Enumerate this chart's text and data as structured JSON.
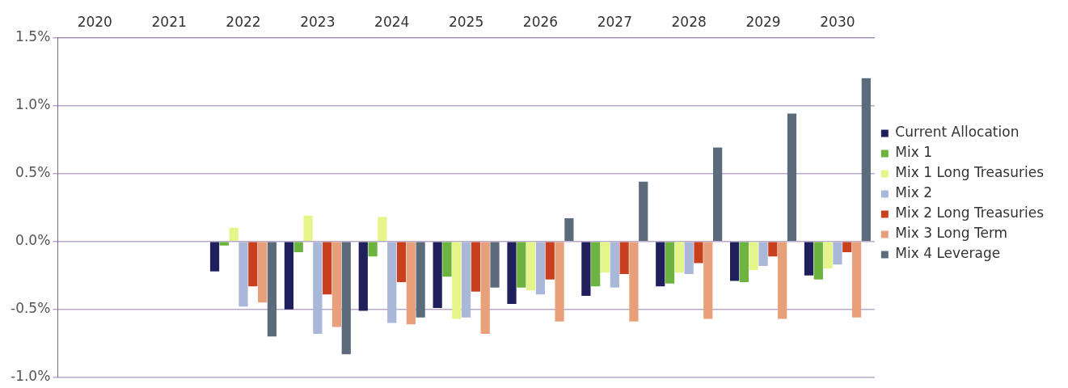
{
  "chart_data": {
    "type": "bar",
    "categories": [
      "2020",
      "2021",
      "2022",
      "2023",
      "2024",
      "2025",
      "2026",
      "2027",
      "2028",
      "2029",
      "2030"
    ],
    "series": [
      {
        "name": "Current Allocation",
        "color": "#1f1f5c",
        "values": [
          0,
          0,
          -0.22,
          -0.5,
          -0.51,
          -0.49,
          -0.46,
          -0.4,
          -0.33,
          -0.29,
          -0.25
        ]
      },
      {
        "name": "Mix 1",
        "color": "#6db33f",
        "values": [
          0,
          0,
          -0.03,
          -0.08,
          -0.11,
          -0.26,
          -0.34,
          -0.33,
          -0.31,
          -0.3,
          -0.28
        ]
      },
      {
        "name": "Mix 1 Long Treasuries",
        "color": "#e6f58a",
        "values": [
          0,
          0,
          0.1,
          0.19,
          0.18,
          -0.57,
          -0.36,
          -0.23,
          -0.23,
          -0.21,
          -0.2
        ]
      },
      {
        "name": "Mix 2",
        "color": "#a9b8d8",
        "values": [
          0,
          0,
          -0.48,
          -0.68,
          -0.6,
          -0.56,
          -0.39,
          -0.34,
          -0.24,
          -0.18,
          -0.17
        ]
      },
      {
        "name": "Mix 2 Long Treasuries",
        "color": "#c9401e",
        "values": [
          0,
          0,
          -0.33,
          -0.39,
          -0.3,
          -0.37,
          -0.28,
          -0.24,
          -0.16,
          -0.11,
          -0.08
        ]
      },
      {
        "name": "Mix 3 Long Term",
        "color": "#e8a07a",
        "values": [
          0,
          0,
          -0.45,
          -0.63,
          -0.61,
          -0.68,
          -0.59,
          -0.59,
          -0.57,
          -0.57,
          -0.56
        ]
      },
      {
        "name": "Mix 4 Leverage",
        "color": "#5b6b7b",
        "values": [
          0,
          0,
          -0.7,
          -0.83,
          -0.56,
          -0.34,
          0.17,
          0.44,
          0.69,
          0.94,
          1.2
        ]
      }
    ],
    "ylim": [
      -1.0,
      1.5
    ],
    "yticks": [
      {
        "value": -1.0,
        "label": "-1.0%"
      },
      {
        "value": -0.5,
        "label": "-0.5%"
      },
      {
        "value": 0,
        "label": "0.0%"
      },
      {
        "value": 0.5,
        "label": "0.5%"
      },
      {
        "value": 1.0,
        "label": "1.0%"
      },
      {
        "value": 1.5,
        "label": "1.5%"
      }
    ],
    "grid": "y",
    "legend": "right"
  }
}
